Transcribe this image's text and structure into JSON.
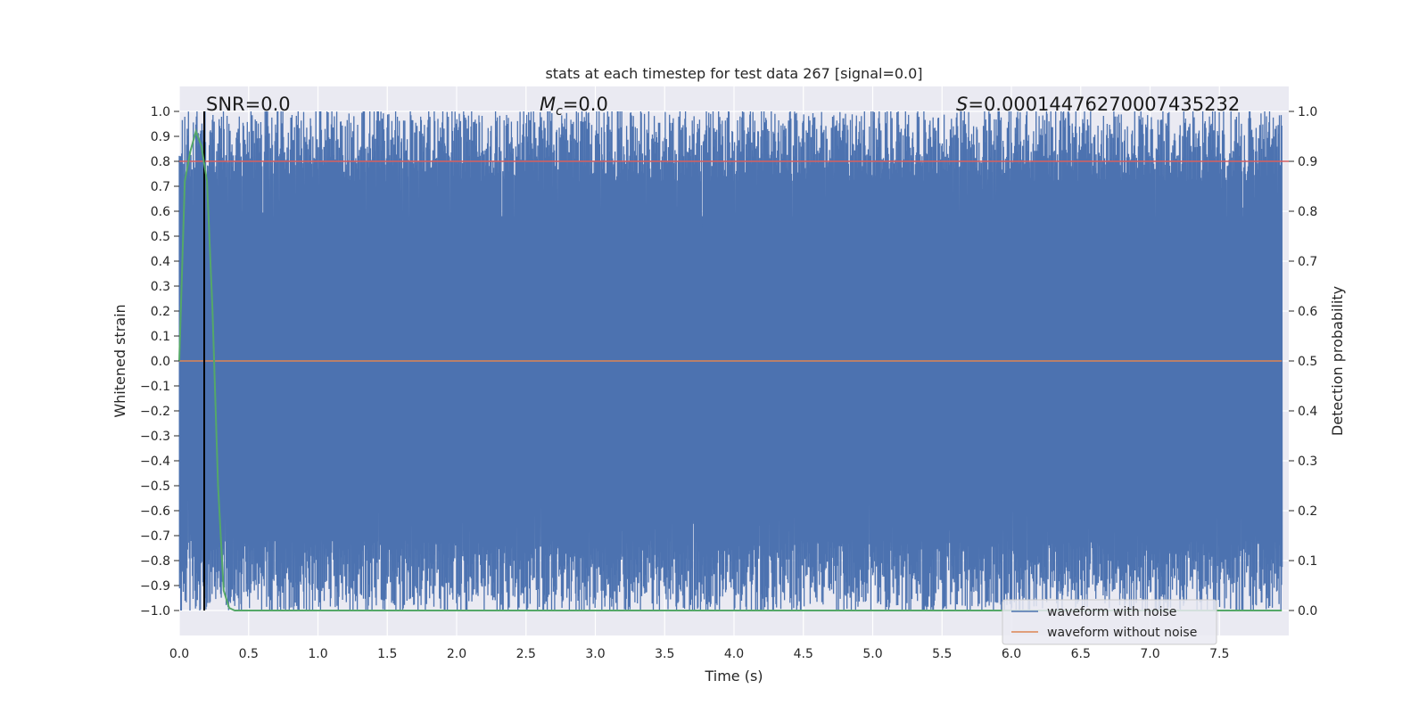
{
  "chart_data": {
    "type": "line",
    "title": "stats at each timestep for test data 267 [signal=0.0]",
    "xlabel": "Time (s)",
    "ylabel": "Whitened strain",
    "ylabel_right": "Detection probability",
    "xlim": [
      0.0,
      8.0
    ],
    "ylim": [
      -1.1,
      1.1
    ],
    "ylim_right": [
      -0.05,
      1.05
    ],
    "xticks": [
      "0.0",
      "0.5",
      "1.0",
      "1.5",
      "2.0",
      "2.5",
      "3.0",
      "3.5",
      "4.0",
      "4.5",
      "5.0",
      "5.5",
      "6.0",
      "6.5",
      "7.0",
      "7.5"
    ],
    "yticks": [
      "1.0",
      "0.9",
      "0.8",
      "0.7",
      "0.6",
      "0.5",
      "0.4",
      "0.3",
      "0.2",
      "0.1",
      "0.0",
      "−0.1",
      "−0.2",
      "−0.3",
      "−0.4",
      "−0.5",
      "−0.6",
      "−0.7",
      "−0.8",
      "−0.9",
      "−1.0"
    ],
    "yticks_right": [
      "1.0",
      "0.9",
      "0.8",
      "0.7",
      "0.6",
      "0.5",
      "0.4",
      "0.3",
      "0.2",
      "0.1",
      "0.0"
    ],
    "grid": true,
    "legend_position": "lower-right",
    "annotations": {
      "snr": "SNR=0.0",
      "mc_symbol": "M",
      "mc_sub": "c",
      "mc_value": "=0.0",
      "s_symbol": "S",
      "s_value": "=0.00014476270007435232"
    },
    "series": [
      {
        "name": "waveform with noise",
        "color": "#4c72b0",
        "axis": "left",
        "description_values": {
          "range": [
            -1.0,
            1.0
          ]
        }
      },
      {
        "name": "waveform without noise",
        "color": "#dd8452",
        "axis": "left",
        "constant": 0.0
      },
      {
        "color": "#55a868",
        "axis": "right",
        "x": [
          0.0,
          0.04,
          0.08,
          0.12,
          0.16,
          0.2,
          0.24,
          0.28,
          0.32,
          0.36,
          0.4,
          1.0,
          2.0,
          3.0,
          4.0,
          5.0,
          6.0,
          7.0,
          7.95
        ],
        "values": [
          0.5,
          0.86,
          0.92,
          0.96,
          0.93,
          0.86,
          0.6,
          0.25,
          0.04,
          0.005,
          0.0,
          0.0,
          0.0,
          0.0,
          0.0,
          0.0,
          0.0,
          0.0,
          0.0
        ]
      },
      {
        "color": "#d65f5f",
        "axis": "right",
        "constant": 0.9
      },
      {
        "color": "#000000",
        "axis": "vertical",
        "x": 0.18
      }
    ]
  }
}
